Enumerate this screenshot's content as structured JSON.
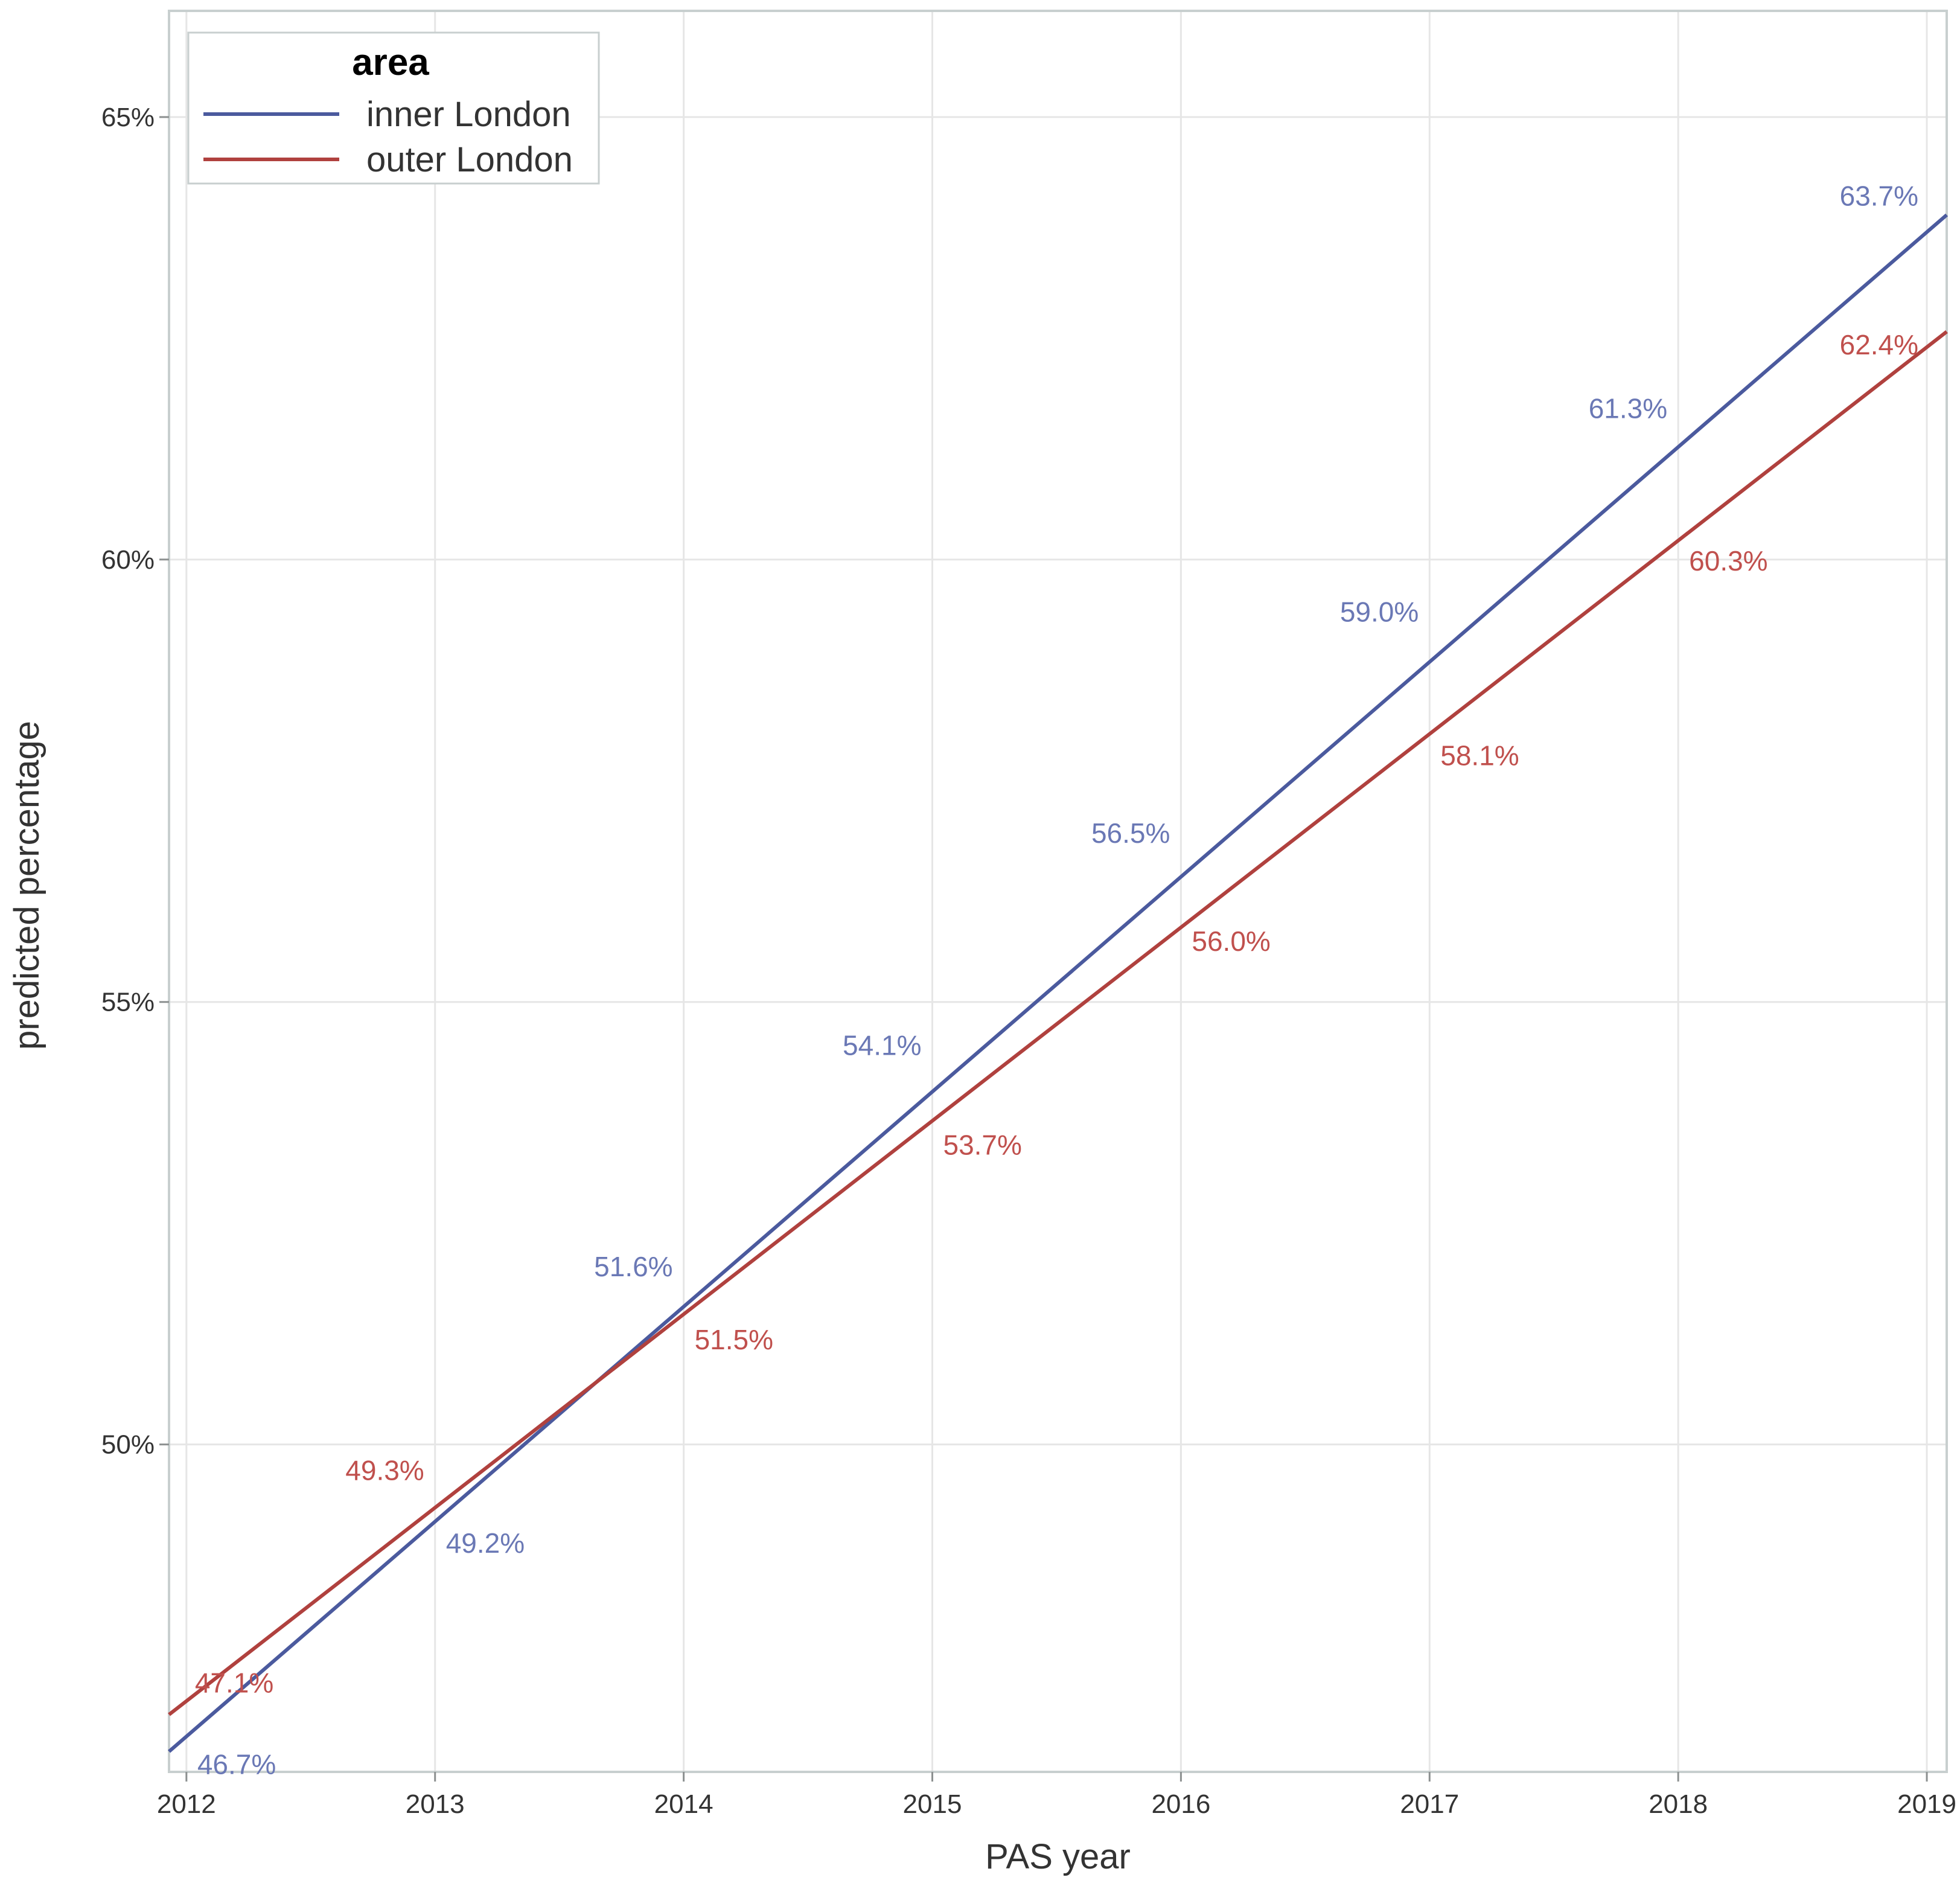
{
  "chart_data": {
    "type": "line",
    "title": "",
    "xlabel": "PAS year",
    "ylabel": "predicted percentage",
    "x": [
      2012,
      2013,
      2014,
      2015,
      2016,
      2017,
      2018,
      2019
    ],
    "x_ticks": [
      "2012",
      "2013",
      "2014",
      "2015",
      "2016",
      "2017",
      "2018",
      "2019"
    ],
    "y_ticks": [
      "50%",
      "55%",
      "60%",
      "65%"
    ],
    "y_tick_values": [
      50,
      55,
      60,
      65
    ],
    "xlim": [
      2011.93,
      2019.08
    ],
    "ylim": [
      46.3,
      66.2
    ],
    "grid": true,
    "legend": {
      "title": "area",
      "placement": "top-left"
    },
    "series": [
      {
        "name": "inner London",
        "color": "#4b5a9e",
        "label_color": "#6a78b5",
        "values": [
          46.7,
          49.2,
          51.6,
          54.1,
          56.5,
          59.0,
          61.3,
          63.7
        ],
        "labels": [
          "46.7%",
          "49.2%",
          "51.6%",
          "54.1%",
          "56.5%",
          "59.0%",
          "61.3%",
          "63.7%"
        ],
        "label_position": [
          "below-right",
          "below-right",
          "above-left",
          "above-left",
          "above-left",
          "above-left",
          "above-left",
          "above-left"
        ]
      },
      {
        "name": "outer London",
        "color": "#b0413e",
        "label_color": "#c0504d",
        "values": [
          47.1,
          49.3,
          51.5,
          53.7,
          56.0,
          58.1,
          60.3,
          62.4
        ],
        "labels": [
          "47.1%",
          "49.3%",
          "51.5%",
          "53.7%",
          "56.0%",
          "58.1%",
          "60.3%",
          "62.4%"
        ],
        "label_position": [
          "above-right",
          "above-left",
          "below-right",
          "below-right",
          "below-right",
          "below-right",
          "below-right",
          "below-left"
        ]
      }
    ]
  }
}
